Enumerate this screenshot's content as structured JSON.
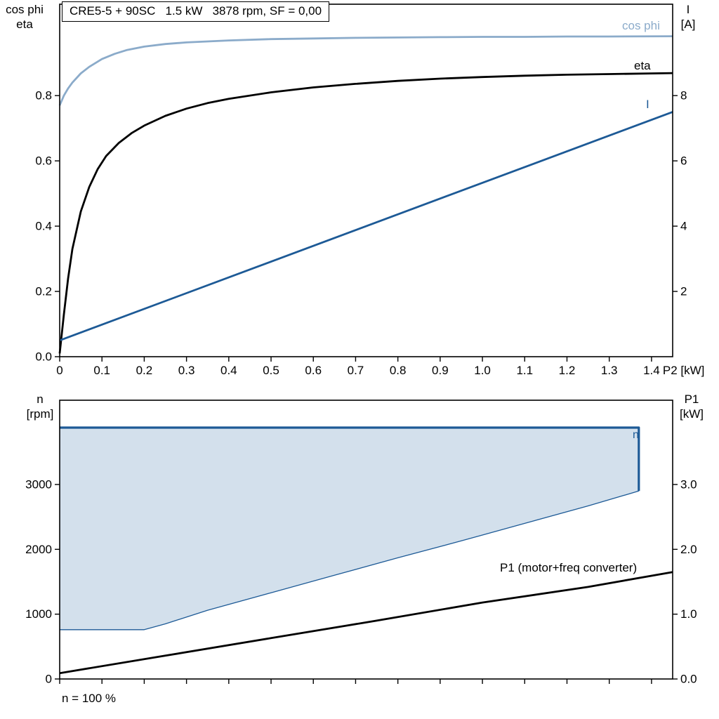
{
  "title_box": {
    "text": "CRE5-5 + 90SC   1.5 kW   3878 rpm, SF = 0,00"
  },
  "labels": {
    "top_left_line1": "cos phi",
    "top_left_line2": "eta",
    "top_right_line1": "I",
    "top_right_line2": "[A]",
    "bottom_left_line1": "n",
    "bottom_left_line2": "[rpm]",
    "bottom_right_line1": "P1",
    "bottom_right_line2": "[kW]",
    "footnote": "n = 100 %"
  },
  "curve_labels": {
    "cos_phi": "cos phi",
    "eta": "eta",
    "current": "I",
    "n": "n",
    "p1": "P1 (motor+freq converter)"
  },
  "colors": {
    "dark_blue": "#1d5a96",
    "light_blue": "#8babca",
    "region_fill": "#d3e0ec",
    "black": "#000000"
  },
  "chart_data": [
    {
      "type": "line",
      "title": "CRE5-5 + 90SC   1.5 kW   3878 rpm, SF = 0,00",
      "xlabel": "P2 [kW]",
      "xlim": [
        0,
        1.45
      ],
      "grid": false,
      "x_ticks": {
        "values": [
          0,
          0.1,
          0.2,
          0.3,
          0.4,
          0.5,
          0.6,
          0.7,
          0.8,
          0.9,
          1.0,
          1.1,
          1.2,
          1.3,
          1.4
        ],
        "labels": [
          "0",
          "0.1",
          "0.2",
          "0.3",
          "0.4",
          "0.5",
          "0.6",
          "0.7",
          "0.8",
          "0.9",
          "1.0",
          "1.1",
          "1.2",
          "1.3",
          "1.4"
        ]
      },
      "left_axis": {
        "label": "cos phi / eta",
        "lim": [
          0,
          1.08
        ],
        "tick_values": [
          0,
          0.2,
          0.4,
          0.6,
          0.8
        ],
        "tick_labels": [
          "0.0",
          "0.2",
          "0.4",
          "0.6",
          "0.8"
        ]
      },
      "right_axis": {
        "label": "I [A]",
        "lim": [
          0,
          10.8
        ],
        "tick_values": [
          2,
          4,
          6,
          8
        ],
        "tick_labels": [
          "2",
          "4",
          "6",
          "8"
        ]
      },
      "series": [
        {
          "name": "cos phi",
          "axis": "left",
          "color": "#8babca",
          "width": 2.8,
          "points": [
            [
              0,
              0.77
            ],
            [
              0.01,
              0.8
            ],
            [
              0.02,
              0.822
            ],
            [
              0.03,
              0.84
            ],
            [
              0.05,
              0.868
            ],
            [
              0.07,
              0.888
            ],
            [
              0.1,
              0.912
            ],
            [
              0.13,
              0.928
            ],
            [
              0.16,
              0.94
            ],
            [
              0.2,
              0.95
            ],
            [
              0.25,
              0.958
            ],
            [
              0.3,
              0.963
            ],
            [
              0.4,
              0.969
            ],
            [
              0.5,
              0.973
            ],
            [
              0.6,
              0.975
            ],
            [
              0.7,
              0.977
            ],
            [
              0.8,
              0.978
            ],
            [
              0.9,
              0.979
            ],
            [
              1.0,
              0.98
            ],
            [
              1.1,
              0.98
            ],
            [
              1.2,
              0.981
            ],
            [
              1.3,
              0.981
            ],
            [
              1.45,
              0.982
            ]
          ]
        },
        {
          "name": "eta",
          "axis": "left",
          "color": "#000000",
          "width": 2.8,
          "points": [
            [
              0,
              0.01
            ],
            [
              0.01,
              0.13
            ],
            [
              0.02,
              0.24
            ],
            [
              0.03,
              0.33
            ],
            [
              0.05,
              0.445
            ],
            [
              0.07,
              0.52
            ],
            [
              0.09,
              0.575
            ],
            [
              0.11,
              0.615
            ],
            [
              0.14,
              0.655
            ],
            [
              0.17,
              0.685
            ],
            [
              0.2,
              0.708
            ],
            [
              0.25,
              0.738
            ],
            [
              0.3,
              0.76
            ],
            [
              0.35,
              0.777
            ],
            [
              0.4,
              0.79
            ],
            [
              0.5,
              0.81
            ],
            [
              0.6,
              0.825
            ],
            [
              0.7,
              0.836
            ],
            [
              0.8,
              0.845
            ],
            [
              0.9,
              0.852
            ],
            [
              1.0,
              0.857
            ],
            [
              1.1,
              0.861
            ],
            [
              1.2,
              0.864
            ],
            [
              1.3,
              0.866
            ],
            [
              1.45,
              0.869
            ]
          ]
        },
        {
          "name": "I",
          "axis": "right",
          "color": "#1d5a96",
          "width": 2.8,
          "points": [
            [
              0,
              0.5
            ],
            [
              1.45,
              7.5
            ]
          ]
        }
      ]
    },
    {
      "type": "area+line",
      "xlabel": "",
      "xlim": [
        0,
        1.45
      ],
      "grid": false,
      "x_ticks": {
        "values": [
          0,
          0.1,
          0.2,
          0.3,
          0.4,
          0.5,
          0.6,
          0.7,
          0.8,
          0.9,
          1.0,
          1.1,
          1.2,
          1.3,
          1.4
        ],
        "labels": [
          "",
          "",
          "",
          "",
          "",
          "",
          "",
          "",
          "",
          "",
          "",
          "",
          "",
          "",
          ""
        ]
      },
      "left_axis": {
        "label": "n [rpm]",
        "lim": [
          0,
          4300
        ],
        "tick_values": [
          0,
          1000,
          2000,
          3000
        ],
        "tick_labels": [
          "0",
          "1000",
          "2000",
          "3000"
        ]
      },
      "right_axis": {
        "label": "P1 [kW]",
        "lim": [
          0,
          4.3
        ],
        "tick_values": [
          0,
          1,
          2,
          3
        ],
        "tick_labels": [
          "0.0",
          "1.0",
          "2.0",
          "3.0"
        ]
      },
      "region": {
        "name": "n operating range",
        "fill": "#d3e0ec",
        "stroke": "#1d5a96",
        "points": [
          [
            0,
            3878
          ],
          [
            1.37,
            3878
          ],
          [
            1.37,
            2900
          ],
          [
            1.25,
            2670
          ],
          [
            1.1,
            2400
          ],
          [
            0.95,
            2130
          ],
          [
            0.8,
            1870
          ],
          [
            0.65,
            1600
          ],
          [
            0.5,
            1330
          ],
          [
            0.35,
            1060
          ],
          [
            0.25,
            850
          ],
          [
            0.2,
            760
          ],
          [
            0,
            760
          ]
        ]
      },
      "series": [
        {
          "name": "n lower boundary",
          "axis": "left",
          "color": "#1d5a96",
          "width": 1.3,
          "points": [
            [
              0,
              760
            ],
            [
              0.2,
              760
            ],
            [
              0.25,
              850
            ],
            [
              0.35,
              1060
            ],
            [
              0.5,
              1330
            ],
            [
              0.65,
              1600
            ],
            [
              0.8,
              1870
            ],
            [
              0.95,
              2130
            ],
            [
              1.1,
              2400
            ],
            [
              1.25,
              2670
            ],
            [
              1.37,
              2900
            ]
          ]
        },
        {
          "name": "n",
          "axis": "left",
          "color": "#1d5a96",
          "width": 3.2,
          "points": [
            [
              0,
              3878
            ],
            [
              1.37,
              3878
            ],
            [
              1.37,
              2900
            ]
          ]
        },
        {
          "name": "P1 (motor+freq converter)",
          "axis": "right",
          "color": "#000000",
          "width": 2.8,
          "points": [
            [
              0,
              0.09
            ],
            [
              0.25,
              0.36
            ],
            [
              0.5,
              0.63
            ],
            [
              0.75,
              0.9
            ],
            [
              1.0,
              1.18
            ],
            [
              1.25,
              1.42
            ],
            [
              1.45,
              1.65
            ]
          ]
        }
      ],
      "annotation": "n = 100 %"
    }
  ]
}
